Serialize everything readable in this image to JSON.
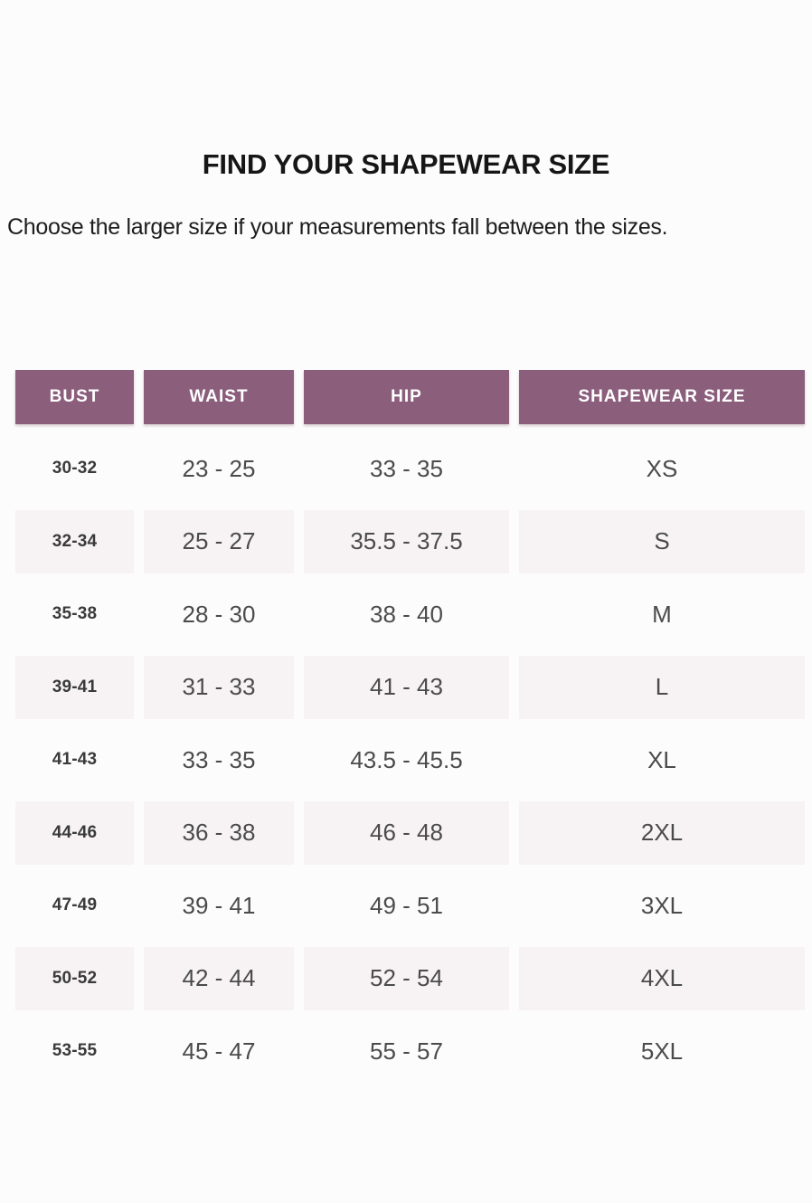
{
  "header": {
    "title": "FIND YOUR SHAPEWEAR SIZE",
    "subtitle": "Choose the larger size if your measurements fall between the sizes."
  },
  "table": {
    "headers": [
      "BUST",
      "WAIST",
      "HIP",
      "SHAPEWEAR SIZE"
    ],
    "rows": [
      {
        "bust": "30-32",
        "waist": "23 - 25",
        "hip": "33 - 35",
        "size": "XS"
      },
      {
        "bust": "32-34",
        "waist": "25 - 27",
        "hip": "35.5 - 37.5",
        "size": "S"
      },
      {
        "bust": "35-38",
        "waist": "28 - 30",
        "hip": "38 - 40",
        "size": "M"
      },
      {
        "bust": "39-41",
        "waist": "31 - 33",
        "hip": "41 - 43",
        "size": "L"
      },
      {
        "bust": "41-43",
        "waist": "33 - 35",
        "hip": "43.5 - 45.5",
        "size": "XL"
      },
      {
        "bust": "44-46",
        "waist": "36 - 38",
        "hip": "46 - 48",
        "size": "2XL"
      },
      {
        "bust": "47-49",
        "waist": "39 - 41",
        "hip": "49 - 51",
        "size": "3XL"
      },
      {
        "bust": "50-52",
        "waist": "42 - 44",
        "hip": "52 - 54",
        "size": "4XL"
      },
      {
        "bust": "53-55",
        "waist": "45 - 47",
        "hip": "55 - 57",
        "size": "5XL"
      }
    ]
  },
  "colors": {
    "header_bg": "#8b5e7c",
    "header_text": "#ffffff",
    "shaded_row_bg": "#f7f3f5",
    "body_text": "#4b4b4b",
    "title_text": "#161616"
  }
}
